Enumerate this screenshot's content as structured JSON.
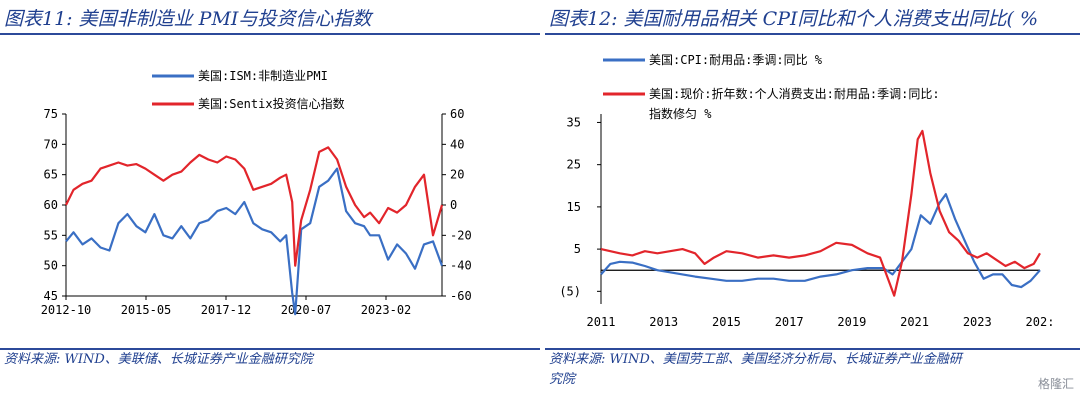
{
  "left": {
    "title": "图表11: 美国非制造业 PMI与投资信心指数",
    "source": "资料来源: WIND、美联储、长城证券产业金融研究院"
  },
  "right": {
    "title": "图表12: 美国耐用品相关 CPI同比和个人消费支出同比( %",
    "source_line1": "资料来源: WIND、美国劳工部、美国经济分析局、长城证券产业金融研",
    "source_line2": "究院"
  },
  "watermark": "格隆汇",
  "colors": {
    "blue": "#3a6fc4",
    "red": "#e2252b",
    "title": "#1f3f8f"
  },
  "chart_data": [
    {
      "type": "line",
      "x_tick_labels": [
        "2012-10",
        "2015-05",
        "2017-12",
        "2020-07",
        "2023-02"
      ],
      "x_range": [
        2012.75,
        2025.3
      ],
      "y_left": {
        "ticks": [
          "45",
          "50",
          "55",
          "60",
          "65",
          "70",
          "75"
        ],
        "range": [
          45,
          75
        ]
      },
      "y_right": {
        "ticks": [
          "-60",
          "-40",
          "-20",
          "0",
          "20",
          "40",
          "60"
        ],
        "range": [
          -60,
          60
        ]
      },
      "legend_position": "top-center",
      "series": [
        {
          "name": "美国:ISM:非制造业PMI",
          "axis": "left",
          "color": "#3a6fc4",
          "x": [
            2012.75,
            2013.0,
            2013.3,
            2013.6,
            2013.9,
            2014.2,
            2014.5,
            2014.8,
            2015.1,
            2015.4,
            2015.7,
            2016.0,
            2016.3,
            2016.6,
            2016.9,
            2017.2,
            2017.5,
            2017.8,
            2018.1,
            2018.4,
            2018.7,
            2019.0,
            2019.3,
            2019.6,
            2019.9,
            2020.1,
            2020.3,
            2020.4,
            2020.6,
            2020.9,
            2021.2,
            2021.5,
            2021.8,
            2022.1,
            2022.4,
            2022.7,
            2022.9,
            2023.2,
            2023.5,
            2023.8,
            2024.1,
            2024.4,
            2024.7,
            2025.0,
            2025.3
          ],
          "y": [
            54,
            55.5,
            53.5,
            54.5,
            53,
            52.5,
            57,
            58.5,
            56.5,
            55.5,
            58.5,
            55,
            54.5,
            56.5,
            54.5,
            57,
            57.5,
            59,
            59.5,
            58.5,
            60.5,
            57,
            56,
            55.5,
            54,
            55,
            45.5,
            42,
            56,
            57,
            63,
            64,
            66,
            59,
            57,
            56.5,
            55,
            55,
            51,
            53.5,
            52,
            49.5,
            53.5,
            54,
            50
          ]
        },
        {
          "name": "美国:Sentix投资信心指数",
          "axis": "right",
          "color": "#e2252b",
          "x": [
            2012.75,
            2013.0,
            2013.3,
            2013.6,
            2013.9,
            2014.2,
            2014.5,
            2014.8,
            2015.1,
            2015.4,
            2015.7,
            2016.0,
            2016.3,
            2016.6,
            2016.9,
            2017.2,
            2017.5,
            2017.8,
            2018.1,
            2018.4,
            2018.7,
            2019.0,
            2019.3,
            2019.6,
            2019.9,
            2020.1,
            2020.3,
            2020.4,
            2020.6,
            2020.9,
            2021.2,
            2021.5,
            2021.8,
            2022.1,
            2022.4,
            2022.7,
            2022.9,
            2023.2,
            2023.5,
            2023.8,
            2024.1,
            2024.4,
            2024.7,
            2025.0,
            2025.3
          ],
          "y": [
            0,
            10,
            14,
            16,
            24,
            26,
            28,
            26,
            27,
            24,
            20,
            16,
            20,
            22,
            28,
            33,
            30,
            28,
            32,
            30,
            24,
            10,
            12,
            14,
            18,
            20,
            2,
            -40,
            -10,
            10,
            35,
            38,
            30,
            12,
            0,
            -8,
            -5,
            -12,
            -2,
            -5,
            0,
            12,
            20,
            -20,
            0
          ]
        }
      ]
    },
    {
      "type": "line",
      "x_tick_labels": [
        "2011",
        "2013",
        "2015",
        "2017",
        "2019",
        "2021",
        "2023",
        "202:"
      ],
      "x_range": [
        2011,
        2025
      ],
      "y_left": {
        "ticks": [
          "(5)",
          "5",
          "15",
          "25",
          "35"
        ],
        "range": [
          -8,
          37
        ]
      },
      "legend_position": "top-left",
      "series": [
        {
          "name": "美国:CPI:耐用品:季调:同比 %",
          "color": "#3a6fc4",
          "x": [
            2011.0,
            2011.3,
            2011.6,
            2012.0,
            2012.4,
            2012.8,
            2013.2,
            2013.6,
            2014.0,
            2014.5,
            2015.0,
            2015.5,
            2016.0,
            2016.5,
            2017.0,
            2017.5,
            2018.0,
            2018.5,
            2019.0,
            2019.5,
            2020.0,
            2020.3,
            2020.6,
            2020.9,
            2021.2,
            2021.5,
            2021.8,
            2022.0,
            2022.3,
            2022.6,
            2022.9,
            2023.2,
            2023.5,
            2023.8,
            2024.1,
            2024.4,
            2024.7,
            2025.0
          ],
          "y": [
            -1,
            1.5,
            2,
            1.8,
            1,
            0,
            -0.5,
            -1,
            -1.5,
            -2,
            -2.5,
            -2.5,
            -2,
            -2,
            -2.5,
            -2.5,
            -1.5,
            -1,
            0,
            0.5,
            0.5,
            -1,
            2,
            5,
            13,
            11,
            16,
            18,
            12,
            7,
            2,
            -2,
            -1,
            -1,
            -3.5,
            -4,
            -2.5,
            0
          ]
        },
        {
          "name": "美国:现价:折年数:个人消费支出:耐用品:季调:同比:指数修匀 %",
          "color": "#e2252b",
          "x": [
            2011.0,
            2011.3,
            2011.6,
            2012.0,
            2012.4,
            2012.8,
            2013.2,
            2013.6,
            2014.0,
            2014.3,
            2014.6,
            2015.0,
            2015.5,
            2016.0,
            2016.5,
            2017.0,
            2017.5,
            2018.0,
            2018.5,
            2019.0,
            2019.5,
            2019.9,
            2020.2,
            2020.35,
            2020.6,
            2020.9,
            2021.1,
            2021.25,
            2021.5,
            2021.8,
            2022.1,
            2022.4,
            2022.7,
            2023.0,
            2023.3,
            2023.6,
            2023.9,
            2024.2,
            2024.5,
            2024.8,
            2025.0
          ],
          "y": [
            5,
            4.5,
            4,
            3.5,
            4.5,
            4,
            4.5,
            5,
            4,
            1.5,
            3,
            4.5,
            4,
            3,
            3.5,
            3,
            3.5,
            4.5,
            6.5,
            6,
            4,
            3,
            -3,
            -6,
            2,
            18,
            31,
            33,
            23,
            14,
            9,
            7,
            4,
            3,
            4,
            2.5,
            1,
            2,
            0.5,
            1.5,
            4
          ]
        }
      ]
    }
  ]
}
